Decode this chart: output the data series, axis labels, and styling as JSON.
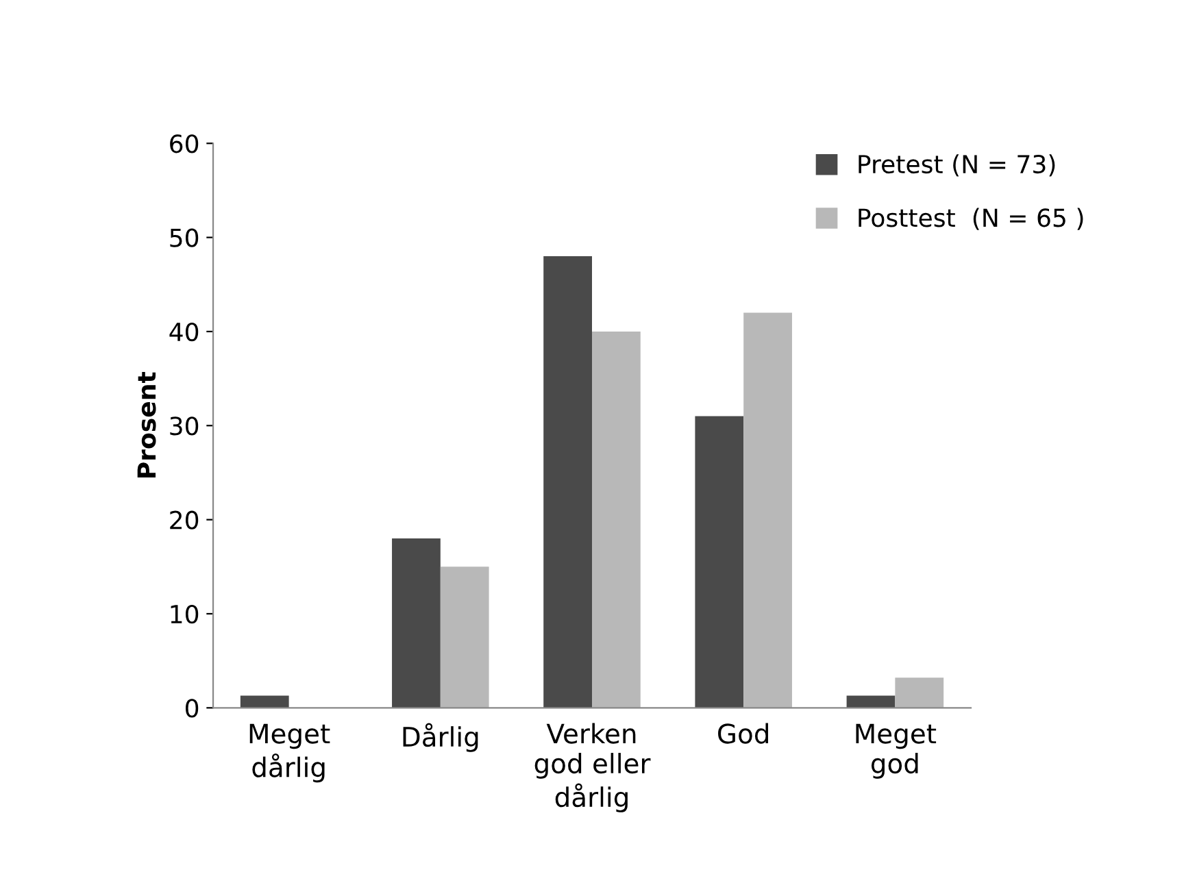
{
  "chart_data": {
    "type": "bar",
    "ylabel": "Prosent",
    "categories": [
      "Meget\ndårlig",
      "Dårlig",
      "Verken\ngod eller\ndårlig",
      "God",
      "Meget\ngod"
    ],
    "series": [
      {
        "name": "Pretest (N = 73)",
        "color": "#4a4a4a",
        "values": [
          1.3,
          18,
          48,
          31,
          1.3
        ]
      },
      {
        "name": "Posttest  (N = 65 )",
        "color": "#b8b8b8",
        "values": [
          0,
          15,
          40,
          42,
          3.2
        ]
      }
    ],
    "ylim": [
      0,
      60
    ],
    "yticks": [
      0,
      10,
      20,
      30,
      40,
      50,
      60
    ],
    "grid": false,
    "legend": "top right"
  }
}
